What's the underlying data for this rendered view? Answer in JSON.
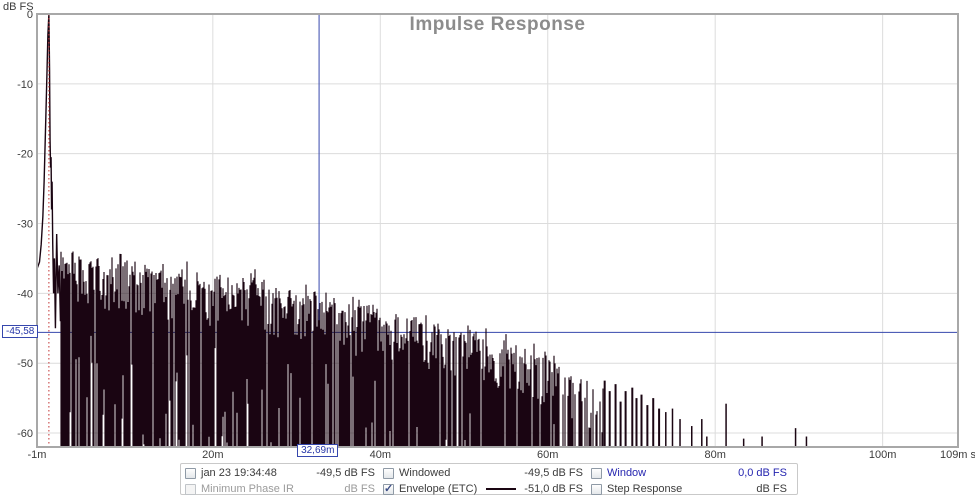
{
  "chart_data": {
    "type": "line",
    "title": "Impulse Response",
    "ylabel": "dB FS",
    "xunit": "ms",
    "xlim": [
      -1,
      109
    ],
    "ylim": [
      -62,
      0
    ],
    "grid": true,
    "x_ticks": [
      {
        "t": -1,
        "label": "-1m",
        "grid": false
      },
      {
        "t": 20,
        "label": "20m",
        "grid": true
      },
      {
        "t": 40,
        "label": "40m",
        "grid": true
      },
      {
        "t": 60,
        "label": "60m",
        "grid": true
      },
      {
        "t": 80,
        "label": "80m",
        "grid": true
      },
      {
        "t": 100,
        "label": "100m",
        "grid": true
      },
      {
        "t": 109,
        "label": "109m s",
        "grid": false
      }
    ],
    "y_ticks": [
      {
        "db": 0,
        "label": "0",
        "grid": false
      },
      {
        "db": -10,
        "label": "-10",
        "grid": true
      },
      {
        "db": -20,
        "label": "-20",
        "grid": true
      },
      {
        "db": -30,
        "label": "-30",
        "grid": true
      },
      {
        "db": -40,
        "label": "-40",
        "grid": true
      },
      {
        "db": -50,
        "label": "-50",
        "grid": true
      },
      {
        "db": -60,
        "label": "-60",
        "grid": true
      }
    ],
    "cursor": {
      "x_ms": 32.69,
      "x_label": "32,69m",
      "y_db": -45.58,
      "y_label": "-45,58"
    },
    "peak_marker_ms": 0.42,
    "spike_polyline": [
      [
        -1,
        -36.5
      ],
      [
        -0.7,
        -35.5
      ],
      [
        -0.5,
        -33
      ],
      [
        -0.3,
        -29
      ],
      [
        -0.15,
        -24
      ],
      [
        0.05,
        -15
      ],
      [
        0.2,
        -8
      ],
      [
        0.3,
        -3
      ],
      [
        0.42,
        0
      ],
      [
        0.5,
        -8
      ],
      [
        0.56,
        -18
      ],
      [
        0.62,
        -22
      ],
      [
        0.68,
        -20.5
      ],
      [
        0.74,
        -28
      ],
      [
        0.8,
        -24
      ],
      [
        0.88,
        -33
      ],
      [
        0.98,
        -40
      ],
      [
        1.08,
        -35
      ],
      [
        1.2,
        -45
      ],
      [
        1.35,
        -31.5
      ],
      [
        1.5,
        -40
      ],
      [
        1.65,
        -36
      ],
      [
        1.8,
        -44
      ]
    ],
    "envelope_ceiling": [
      [
        1.8,
        -32.5
      ],
      [
        2.4,
        -34.5
      ],
      [
        3.4,
        -33.5
      ],
      [
        4.5,
        -35.5
      ],
      [
        6,
        -34.5
      ],
      [
        7.5,
        -36
      ],
      [
        9,
        -35
      ],
      [
        11,
        -36.5
      ],
      [
        13,
        -36
      ],
      [
        15,
        -37.5
      ],
      [
        17,
        -36.5
      ],
      [
        19,
        -38
      ],
      [
        21,
        -37
      ],
      [
        23,
        -38.5
      ],
      [
        25,
        -38
      ],
      [
        27,
        -39.5
      ],
      [
        29,
        -39
      ],
      [
        31,
        -40
      ],
      [
        33,
        -39.5
      ],
      [
        35,
        -41
      ],
      [
        37,
        -42
      ],
      [
        39,
        -41.5
      ],
      [
        41,
        -43
      ],
      [
        43,
        -42.5
      ],
      [
        45,
        -44
      ],
      [
        47,
        -44.5
      ],
      [
        49,
        -45.5
      ],
      [
        51,
        -45
      ],
      [
        53,
        -46.5
      ],
      [
        55,
        -47
      ],
      [
        57,
        -48
      ],
      [
        59,
        -49
      ],
      [
        61,
        -50
      ],
      [
        63,
        -51.5
      ],
      [
        65,
        -52.5
      ],
      [
        66.8,
        -53.5
      ]
    ],
    "noise_floor": -62,
    "tail_bars": [
      [
        66.8,
        -52.5
      ],
      [
        67.4,
        -54
      ],
      [
        68.1,
        -53
      ],
      [
        68.7,
        -55.5
      ],
      [
        69.3,
        -54
      ],
      [
        70.1,
        -53.5
      ],
      [
        70.6,
        -55
      ],
      [
        71.2,
        -54.5
      ],
      [
        71.9,
        -56
      ],
      [
        72.6,
        -55
      ],
      [
        73.3,
        -56.5
      ],
      [
        74.1,
        -57
      ],
      [
        74.9,
        -56.5
      ],
      [
        75.8,
        -58
      ],
      [
        77.2,
        -59
      ],
      [
        78.4,
        -58
      ],
      [
        79.0,
        -60.5
      ],
      [
        81.3,
        -55.8
      ],
      [
        83.4,
        -60.8
      ],
      [
        85.6,
        -60.5
      ],
      [
        89.6,
        -59.3
      ],
      [
        90.9,
        -60.5
      ]
    ],
    "colors": {
      "trace": "#1a0512",
      "cursor": "#3647ad",
      "peak_marker": "#c23333",
      "grid": "#dcdcdc",
      "border": "#a8a8a8",
      "title": "#8c8c8c"
    }
  },
  "legend": {
    "entries": [
      {
        "id": "measurement",
        "label": "jan 23 19:34:48",
        "value": "-49,5 dB FS",
        "checked": false,
        "grayed": false,
        "blue": false,
        "swatch": false
      },
      {
        "id": "minimum-phase-ir",
        "label": "Minimum Phase IR",
        "value": "dB FS",
        "checked": false,
        "grayed": true,
        "blue": false,
        "swatch": false
      },
      {
        "id": "windowed",
        "label": "Windowed",
        "value": "-49,5 dB FS",
        "checked": false,
        "grayed": false,
        "blue": false,
        "swatch": false
      },
      {
        "id": "envelope-etc",
        "label": "Envelope (ETC)",
        "value": "-51,0 dB FS",
        "checked": true,
        "grayed": false,
        "blue": false,
        "swatch": true
      },
      {
        "id": "window",
        "label": "Window",
        "value": "0,0 dB FS",
        "checked": false,
        "grayed": false,
        "blue": true,
        "swatch": false
      },
      {
        "id": "step-response",
        "label": "Step Response",
        "value": "dB FS",
        "checked": false,
        "grayed": false,
        "blue": false,
        "swatch": false
      }
    ]
  }
}
